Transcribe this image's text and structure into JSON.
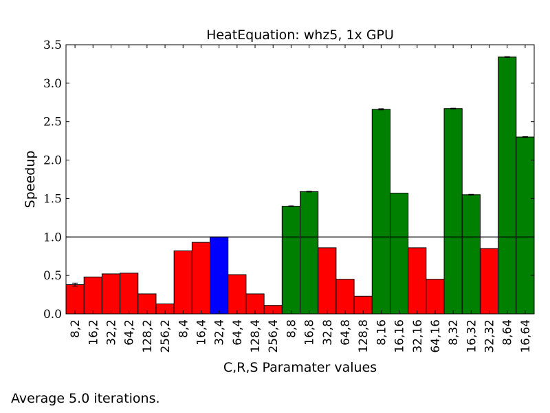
{
  "chart_data": {
    "type": "bar",
    "title": "HeatEquation: whz5, 1x GPU",
    "xlabel": "C,R,S Paramater values",
    "ylabel": "Speedup",
    "ylim": [
      0,
      3.5
    ],
    "yticks": [
      "0.0",
      "0.5",
      "1.0",
      "1.5",
      "2.0",
      "2.5",
      "3.0",
      "3.5"
    ],
    "reference_line": 1.0,
    "grid": false,
    "colors": {
      "below": "#ff0000",
      "baseline": "#0000ff",
      "above": "#008000"
    },
    "categories": [
      "8,2",
      "16,2",
      "32,2",
      "64,2",
      "128,2",
      "256,2",
      "8,4",
      "16,4",
      "32,4",
      "64,4",
      "128,4",
      "256,4",
      "8,8",
      "16,8",
      "32,8",
      "64,8",
      "128,8",
      "8,16",
      "16,16",
      "32,16",
      "64,16",
      "8,32",
      "16,32",
      "32,32",
      "8,64",
      "16,64"
    ],
    "values": [
      0.38,
      0.48,
      0.52,
      0.53,
      0.26,
      0.13,
      0.82,
      0.93,
      1.0,
      0.51,
      0.26,
      0.11,
      1.4,
      1.59,
      0.86,
      0.45,
      0.23,
      2.66,
      1.57,
      0.86,
      0.45,
      2.67,
      1.55,
      0.85,
      3.34,
      2.3
    ],
    "errors": [
      0.02,
      0,
      0,
      0,
      0,
      0,
      0,
      0,
      0,
      0,
      0,
      0,
      0.005,
      0.005,
      0,
      0,
      0,
      0.008,
      0,
      0,
      0,
      0.005,
      0.005,
      0,
      0.005,
      0.005
    ],
    "bar_colors": [
      "below",
      "below",
      "below",
      "below",
      "below",
      "below",
      "below",
      "below",
      "baseline",
      "below",
      "below",
      "below",
      "above",
      "above",
      "below",
      "below",
      "below",
      "above",
      "above",
      "below",
      "below",
      "above",
      "above",
      "below",
      "above",
      "above"
    ]
  },
  "footnote": "Average 5.0 iterations."
}
